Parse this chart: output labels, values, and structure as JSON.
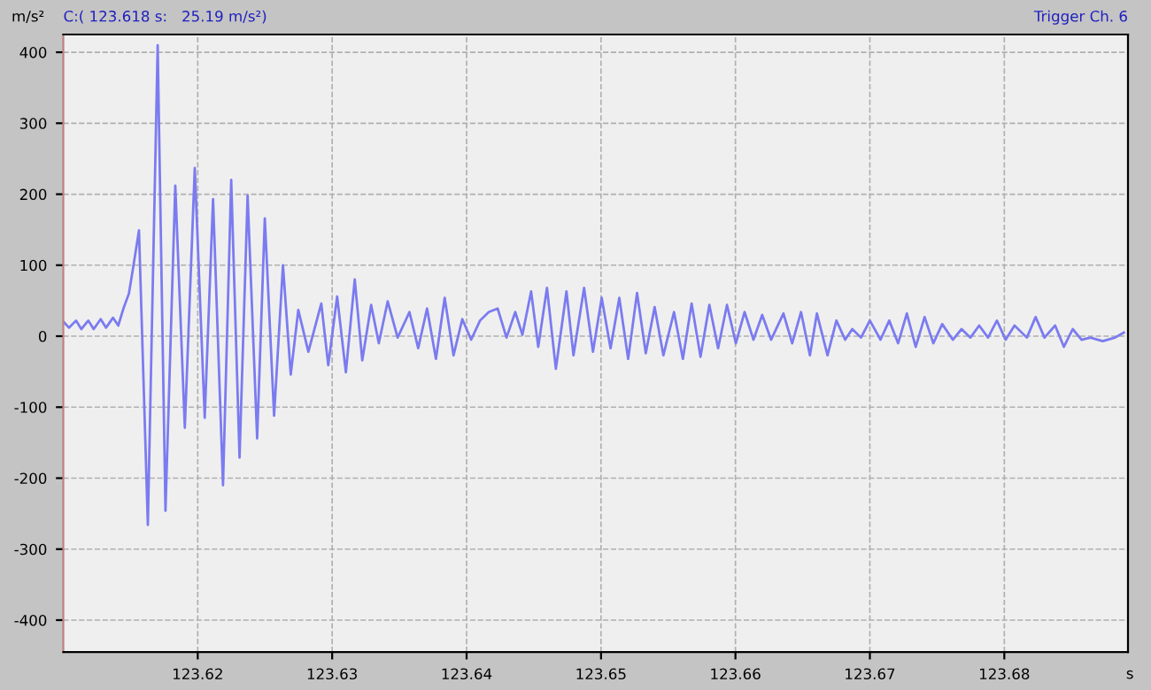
{
  "chart_data": {
    "type": "line",
    "ylabel": "m/s²",
    "xlabel": "s",
    "annotations": [
      "C:( 123.618 s:   25.19 m/s²)",
      "Trigger Ch. 6"
    ],
    "xlim": [
      123.61,
      123.6892
    ],
    "xticks": [
      123.62,
      123.63,
      123.64,
      123.65,
      123.66,
      123.67,
      123.68
    ],
    "ylim": [
      -445,
      425
    ],
    "yticks": [
      -400,
      -300,
      -200,
      -100,
      0,
      100,
      200,
      300,
      400
    ],
    "grid": true,
    "legend": false,
    "series": [
      {
        "color": "#7b7bf0",
        "x": [
          123.61003,
          123.61042,
          123.61095,
          123.61134,
          123.61186,
          123.61226,
          123.61278,
          123.61318,
          123.6137,
          123.61409,
          123.61449,
          123.61488,
          123.61514,
          123.61563,
          123.61629,
          123.61702,
          123.6176,
          123.61833,
          123.61904,
          123.61978,
          123.62052,
          123.62114,
          123.62188,
          123.62249,
          123.62311,
          123.62371,
          123.62442,
          123.62499,
          123.62568,
          123.62634,
          123.62692,
          123.62748,
          123.62823,
          123.62919,
          123.62971,
          123.63037,
          123.63102,
          123.63168,
          123.63224,
          123.6329,
          123.63347,
          123.63413,
          123.63487,
          123.63575,
          123.6364,
          123.63706,
          123.63772,
          123.63837,
          123.63903,
          123.63968,
          123.64034,
          123.641,
          123.64165,
          123.64231,
          123.64297,
          123.64362,
          123.64415,
          123.6448,
          123.64533,
          123.64598,
          123.64664,
          123.64743,
          123.64795,
          123.64874,
          123.6494,
          123.65005,
          123.65071,
          123.65136,
          123.65202,
          123.65268,
          123.65333,
          123.65399,
          123.65464,
          123.65543,
          123.65609,
          123.65674,
          123.6574,
          123.65806,
          123.65871,
          123.65937,
          123.66003,
          123.66068,
          123.66134,
          123.66199,
          123.66265,
          123.66357,
          123.66422,
          123.66488,
          123.66554,
          123.66606,
          123.66685,
          123.66751,
          123.66816,
          123.66869,
          123.66934,
          123.67,
          123.67079,
          123.67144,
          123.6721,
          123.67275,
          123.67341,
          123.67407,
          123.67472,
          123.67538,
          123.67617,
          123.67682,
          123.67748,
          123.67813,
          123.67879,
          123.67945,
          123.6801,
          123.68076,
          123.68168,
          123.68233,
          123.68299,
          123.68378,
          123.68443,
          123.68509,
          123.68575,
          123.6864,
          123.68732,
          123.68824,
          123.68889
        ],
        "values": [
          20,
          12,
          22,
          10,
          22,
          10,
          24,
          12,
          26,
          15,
          40,
          60,
          90,
          149,
          -266,
          410,
          -246,
          212,
          -129,
          237,
          -115,
          193,
          -210,
          220,
          -171,
          198,
          -144,
          166,
          -112,
          100,
          -54,
          37,
          -22,
          46,
          -41,
          56,
          -51,
          80,
          -34,
          44,
          -10,
          49,
          -2,
          34,
          -17,
          39,
          -32,
          54,
          -27,
          24,
          -5,
          22,
          34,
          39,
          -2,
          34,
          2,
          63,
          -15,
          68,
          -46,
          63,
          -27,
          68,
          -22,
          54,
          -17,
          54,
          -32,
          61,
          -24,
          41,
          -27,
          34,
          -32,
          46,
          -29,
          44,
          -17,
          44,
          -10,
          34,
          -5,
          30,
          -5,
          32,
          -10,
          34,
          -27,
          32,
          -27,
          22,
          -5,
          10,
          -2,
          22,
          -5,
          22,
          -10,
          32,
          -15,
          27,
          -10,
          17,
          -5,
          10,
          -2,
          15,
          -2,
          22,
          -5,
          15,
          -2,
          27,
          -2,
          15,
          -15,
          10,
          -5,
          -2,
          -7,
          -2,
          5
        ]
      }
    ]
  }
}
